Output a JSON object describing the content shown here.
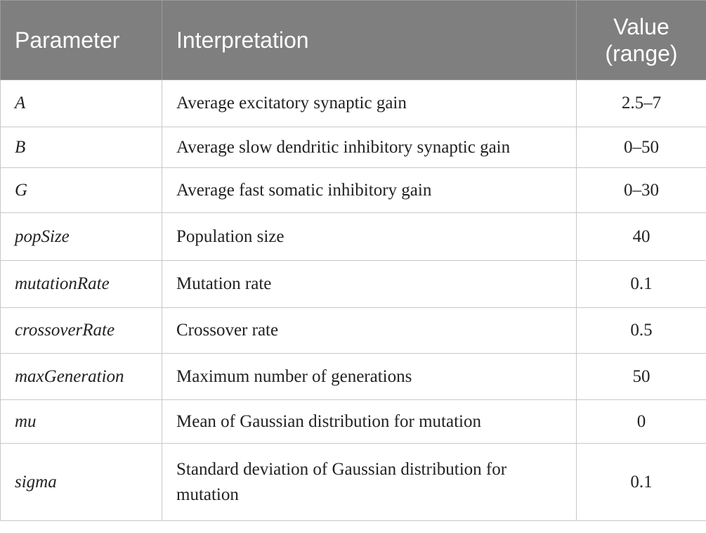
{
  "table": {
    "header": [
      "Parameter",
      "Interpretation",
      "Value (range)"
    ],
    "rows": [
      [
        "A",
        "Average excitatory synaptic gain",
        "2.5–7"
      ],
      [
        "B",
        "Average slow dendritic inhibitory synaptic gain",
        "0–50"
      ],
      [
        "G",
        "Average fast somatic inhibitory gain",
        "0–30"
      ],
      [
        "popSize",
        "Population size",
        "40"
      ],
      [
        "mutationRate",
        "Mutation rate",
        "0.1"
      ],
      [
        "crossoverRate",
        "Crossover rate",
        "0.5"
      ],
      [
        "maxGeneration",
        "Maximum number of generations",
        "50"
      ],
      [
        "mu",
        "Mean of Gaussian distribution for mutation",
        "0"
      ],
      [
        "sigma",
        "Standard deviation of Gaussian distribution for mutation",
        "0.1"
      ]
    ]
  }
}
